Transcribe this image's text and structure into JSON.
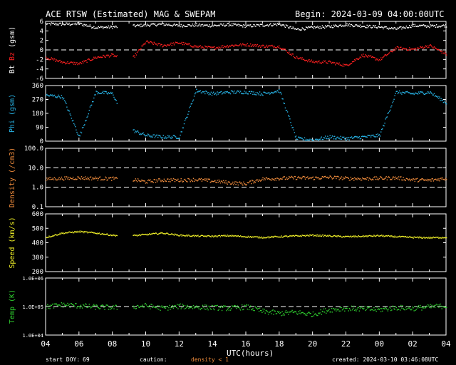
{
  "header": {
    "title": "ACE RTSW (Estimated) MAG & SWEPAM",
    "begin": "Begin: 2024-03-09 04:00:00UTC"
  },
  "footer": {
    "start_doy_label": "start DOY:",
    "start_doy": "69",
    "caution_label": "caution:",
    "density_note": "density < 1",
    "created": "created: 2024-03-10 03:46:08UTC"
  },
  "xaxis": {
    "label": "UTC(hours)",
    "ticks": [
      "04",
      "06",
      "08",
      "10",
      "12",
      "14",
      "16",
      "18",
      "20",
      "22",
      "00",
      "02",
      "04"
    ]
  },
  "colors": {
    "bt": "#ffffff",
    "bz": "#ff2020",
    "phi": "#28b4e6",
    "density": "#f08c3c",
    "speed": "#f0f028",
    "temp": "#2ecc2e",
    "frame": "#ffffff",
    "background": "#000000"
  },
  "chart_data": [
    {
      "type": "scatter",
      "panel": "mag",
      "ylabel_parts": [
        "Bt",
        "Bz",
        "(gsm)"
      ],
      "ylim": [
        -6,
        6
      ],
      "yticks": [
        "6",
        "4",
        "2",
        "0",
        "-2",
        "-4",
        "-6"
      ],
      "ref_lines": [
        0
      ],
      "x_hours": [
        0,
        1,
        2,
        3,
        4,
        5,
        6,
        7,
        8,
        9,
        10,
        11,
        12,
        13,
        14,
        15,
        16,
        17,
        18,
        19,
        20,
        21,
        22,
        23,
        24
      ],
      "gaps": [
        [
          4.3,
          5.2
        ]
      ],
      "series": [
        {
          "name": "Bt",
          "color": "#ffffff",
          "values": [
            5.6,
            5.5,
            5.6,
            4.8,
            4.9,
            5.1,
            5.3,
            5.5,
            5.2,
            5.3,
            5.2,
            5.4,
            5.1,
            5.3,
            5.5,
            4.4,
            4.8,
            5.0,
            5.4,
            5.1,
            4.9,
            4.5,
            5.2,
            5.1,
            5.2
          ]
        },
        {
          "name": "Bz",
          "color": "#ff2020",
          "values": [
            -1.5,
            -2.5,
            -2.8,
            -1.5,
            -1.0,
            -2.5,
            1.8,
            1.0,
            1.6,
            0.8,
            0.5,
            1.0,
            1.2,
            0.9,
            0.8,
            -1.5,
            -2.4,
            -2.5,
            -3.2,
            -1.0,
            -2.0,
            0.5,
            0.2,
            1.0,
            -0.8
          ]
        }
      ]
    },
    {
      "type": "scatter",
      "panel": "phi",
      "ylabel": "Phi (gsm)",
      "ylim": [
        0,
        360
      ],
      "yticks": [
        "360",
        "270",
        "180",
        "90",
        "0"
      ],
      "x_hours": [
        0,
        1,
        2,
        3,
        4,
        5,
        6,
        7,
        8,
        9,
        10,
        11,
        12,
        13,
        14,
        15,
        16,
        17,
        18,
        19,
        20,
        21,
        22,
        23,
        24
      ],
      "gaps": [
        [
          4.3,
          5.2
        ]
      ],
      "series": [
        {
          "name": "Phi",
          "color": "#28b4e6",
          "values": [
            300,
            290,
            30,
            320,
            310,
            80,
            40,
            30,
            30,
            330,
            310,
            320,
            320,
            310,
            330,
            20,
            10,
            30,
            20,
            30,
            40,
            320,
            310,
            320,
            250
          ]
        }
      ]
    },
    {
      "type": "scatter",
      "panel": "density",
      "ylabel": "Density (/cm3)",
      "scale": "log",
      "ylim": [
        0.1,
        100
      ],
      "yticks": [
        "100.0",
        "10.0",
        "1.0",
        "0.1"
      ],
      "ref_lines": [
        10,
        1
      ],
      "x_hours": [
        0,
        1,
        2,
        3,
        4,
        5,
        6,
        7,
        8,
        9,
        10,
        11,
        12,
        13,
        14,
        15,
        16,
        17,
        18,
        19,
        20,
        21,
        22,
        23,
        24
      ],
      "gaps": [
        [
          4.3,
          5.2
        ]
      ],
      "series": [
        {
          "name": "Density",
          "color": "#f08c3c",
          "values": [
            2.8,
            3.0,
            3.2,
            3.0,
            2.9,
            2.7,
            2.0,
            2.5,
            2.4,
            2.6,
            2.2,
            1.8,
            1.6,
            2.8,
            3.0,
            3.2,
            3.1,
            3.4,
            3.0,
            2.9,
            3.0,
            3.2,
            2.5,
            2.4,
            3.0
          ]
        }
      ]
    },
    {
      "type": "scatter",
      "panel": "speed",
      "ylabel": "Speed (km/s)",
      "ylim": [
        200,
        600
      ],
      "yticks": [
        "600",
        "500",
        "400",
        "300",
        "200"
      ],
      "x_hours": [
        0,
        1,
        2,
        3,
        4,
        5,
        6,
        7,
        8,
        9,
        10,
        11,
        12,
        13,
        14,
        15,
        16,
        17,
        18,
        19,
        20,
        21,
        22,
        23,
        24
      ],
      "gaps": [
        [
          4.3,
          5.2
        ]
      ],
      "series": [
        {
          "name": "Speed",
          "color": "#f0f028",
          "values": [
            440,
            470,
            480,
            470,
            455,
            450,
            460,
            470,
            455,
            450,
            448,
            452,
            445,
            440,
            445,
            450,
            455,
            450,
            445,
            448,
            452,
            445,
            440,
            438,
            440
          ]
        }
      ]
    },
    {
      "type": "scatter",
      "panel": "temp",
      "ylabel": "Temp (K)",
      "scale": "log",
      "ylim": [
        10000,
        1000000
      ],
      "yticks": [
        "1.0E+06",
        "1.0E+05",
        "1.0E+04"
      ],
      "ref_lines": [
        100000
      ],
      "x_hours": [
        0,
        1,
        2,
        3,
        4,
        5,
        6,
        7,
        8,
        9,
        10,
        11,
        12,
        13,
        14,
        15,
        16,
        17,
        18,
        19,
        20,
        21,
        22,
        23,
        24
      ],
      "gaps": [
        [
          4.3,
          5.2
        ]
      ],
      "series": [
        {
          "name": "Temp",
          "color": "#2ecc2e",
          "values": [
            100000,
            120000,
            110000,
            100000,
            95000,
            100000,
            110000,
            90000,
            105000,
            100000,
            95000,
            90000,
            100000,
            70000,
            60000,
            65000,
            55000,
            80000,
            90000,
            85000,
            80000,
            95000,
            90000,
            100000,
            110000
          ]
        }
      ]
    }
  ]
}
